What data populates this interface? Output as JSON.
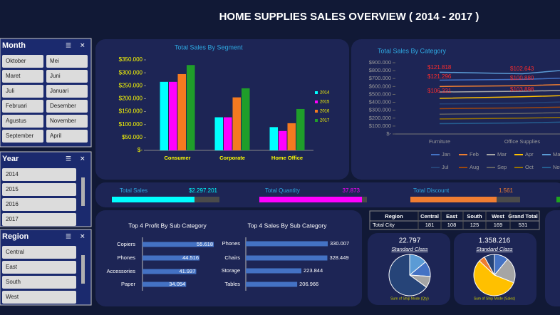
{
  "header": {
    "title": "HOME SUPPLIES SALES OVERVIEW ( 2014 - 2017 )"
  },
  "slicers": [
    {
      "title": "Month",
      "items": [
        "Oktober",
        "Mei",
        "Maret",
        "Juni",
        "Juli",
        "Januari",
        "Februari",
        "Desember",
        "Agustus",
        "November",
        "September",
        "April"
      ]
    },
    {
      "title": "Year",
      "items": [
        "2014",
        "2015",
        "2016",
        "2017"
      ]
    },
    {
      "title": "Region",
      "items": [
        "Central",
        "East",
        "South",
        "West"
      ]
    }
  ],
  "kpis": [
    {
      "label": "Total Sales",
      "value": "$2.297.201",
      "color": "#00ffff"
    },
    {
      "label": "Total Quantity",
      "value": "37.873",
      "color": "#ff00ff"
    },
    {
      "label": "Total Discount",
      "value": "1.561",
      "color": "#f07d32"
    }
  ],
  "table": {
    "header": [
      "Region",
      "Central",
      "East",
      "South",
      "West",
      "Grand Total"
    ],
    "rows": [
      [
        "Total City",
        181,
        108,
        125,
        169,
        531
      ]
    ]
  },
  "cards": [
    {
      "value": "22.797",
      "subtitle": "Standard Class",
      "caption": "Sum of Ship Mode (Qty)"
    },
    {
      "value": "1.358.216",
      "subtitle": "Standard Class",
      "caption": "Sum of Ship Mode (Sales)"
    }
  ],
  "chart_data": [
    {
      "type": "bar",
      "title": "Total Sales By Segment",
      "categories": [
        "Consumer",
        "Corporate",
        "Home Office"
      ],
      "series": [
        {
          "name": "2014",
          "color": "#00ffff",
          "values": [
            265000,
            128000,
            90000
          ]
        },
        {
          "name": "2015",
          "color": "#ff00ff",
          "values": [
            265000,
            128000,
            75000
          ]
        },
        {
          "name": "2016",
          "color": "#f47a20",
          "values": [
            295000,
            205000,
            105000
          ]
        },
        {
          "name": "2017",
          "color": "#1f9e2a",
          "values": [
            330000,
            240000,
            160000
          ]
        }
      ],
      "ylim": [
        0,
        350000
      ],
      "yticks": [
        {
          "value": 0,
          "label": "$-"
        },
        {
          "value": 50000,
          "label": "$50.000"
        },
        {
          "value": 100000,
          "label": "$100.000"
        },
        {
          "value": 150000,
          "label": "$150.000"
        },
        {
          "value": 200000,
          "label": "$200.000"
        },
        {
          "value": 250000,
          "label": "$250.000"
        },
        {
          "value": 300000,
          "label": "$300.000"
        },
        {
          "value": 350000,
          "label": "$350.000"
        }
      ],
      "grid": false,
      "legend": "right"
    },
    {
      "type": "line",
      "title": "Total Sales By Category",
      "categories": [
        "Furniture",
        "Office Supplies",
        null
      ],
      "series": [
        {
          "name": "Jan",
          "color": "#4472c4",
          "values": [
            680000,
            690000,
            720000
          ]
        },
        {
          "name": "Feb",
          "color": "#ed7d31",
          "values": [
            600000,
            610000,
            640000
          ]
        },
        {
          "name": "Mar",
          "color": "#a5a5a5",
          "values": [
            530000,
            540000,
            560000
          ]
        },
        {
          "name": "Apr",
          "color": "#ffc000",
          "values": [
            450000,
            470000,
            500000
          ]
        },
        {
          "name": "May",
          "color": "#5b9bd5",
          "values": [
            780000,
            760000,
            850000
          ]
        },
        {
          "name": "Jul",
          "color": "#264478",
          "values": [
            380000,
            390000,
            420000
          ]
        },
        {
          "name": "Aug",
          "color": "#9e480e",
          "values": [
            320000,
            330000,
            350000
          ]
        },
        {
          "name": "Sep",
          "color": "#636363",
          "values": [
            250000,
            260000,
            280000
          ]
        },
        {
          "name": "Oct",
          "color": "#997300",
          "values": [
            190000,
            200000,
            220000
          ]
        },
        {
          "name": "Nov",
          "color": "#255e91",
          "values": [
            130000,
            140000,
            160000
          ]
        }
      ],
      "annotations": [
        "$121.818",
        "$121.296",
        "$106.331",
        "$102.643",
        "$100.880",
        "$103.898"
      ],
      "ylim": [
        0,
        900000
      ],
      "yticks": [
        {
          "value": 0,
          "label": "$-"
        },
        {
          "value": 100000,
          "label": "$100.000"
        },
        {
          "value": 200000,
          "label": "$200.000"
        },
        {
          "value": 300000,
          "label": "$300.000"
        },
        {
          "value": 400000,
          "label": "$400.000"
        },
        {
          "value": 500000,
          "label": "$500.000"
        },
        {
          "value": 600000,
          "label": "$600.000"
        },
        {
          "value": 700000,
          "label": "$700.000"
        },
        {
          "value": 800000,
          "label": "$800.000"
        },
        {
          "value": 900000,
          "label": "$900.000"
        }
      ],
      "grid": false,
      "legend": "bottom"
    },
    {
      "type": "hbar",
      "title": "Top 4 Profit By Sub Category",
      "categories": [
        "Copiers",
        "Phones",
        "Accessories",
        "Paper"
      ],
      "values": [
        55618,
        44516,
        41937,
        34054
      ],
      "value_labels": [
        "55.618",
        "44.516",
        "41.937",
        "34.054"
      ],
      "color": "#4472c4"
    },
    {
      "type": "hbar",
      "title": "Top 4 Sales By Sub Category",
      "categories": [
        "Phones",
        "Chairs",
        "Storage",
        "Tables"
      ],
      "values": [
        330007,
        328449,
        223844,
        206966
      ],
      "value_labels": [
        "330.007",
        "328.449",
        "223.844",
        "206.966"
      ],
      "color": "#4472c4"
    },
    {
      "type": "pie",
      "categories": [
        null,
        null,
        null,
        null
      ],
      "values": [
        14,
        12,
        9,
        65
      ],
      "colors": [
        "#5b9bd5",
        "#4472c4",
        "#a5a5a5",
        "#264478"
      ]
    },
    {
      "type": "pie",
      "categories": [
        null,
        null,
        null,
        null,
        null
      ],
      "values": [
        11,
        20,
        56,
        5,
        8
      ],
      "colors": [
        "#4472c4",
        "#a5a5a5",
        "#ffc000",
        "#ed7d31",
        "#264478"
      ]
    }
  ]
}
